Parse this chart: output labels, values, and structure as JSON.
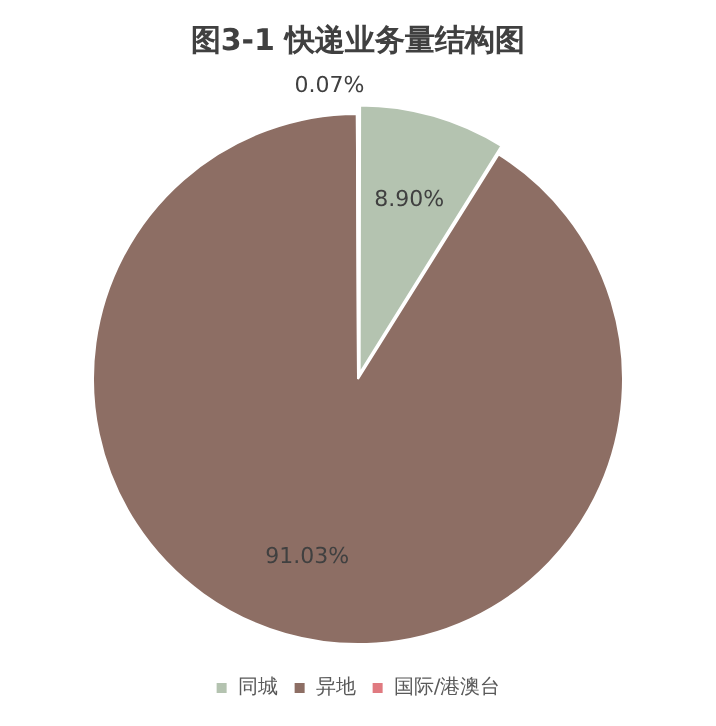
{
  "chart_data": {
    "type": "pie",
    "title": "图3-1 快递业务量结构图",
    "categories": [
      "同城",
      "异地",
      "国际/港澳台"
    ],
    "values": [
      8.9,
      91.03,
      0.07
    ],
    "colors": [
      "#b4c3b0",
      "#8d6e64",
      "#e07a80"
    ],
    "value_labels": [
      "8.90%",
      "91.03%",
      "0.07%"
    ],
    "legend": "bottom"
  }
}
